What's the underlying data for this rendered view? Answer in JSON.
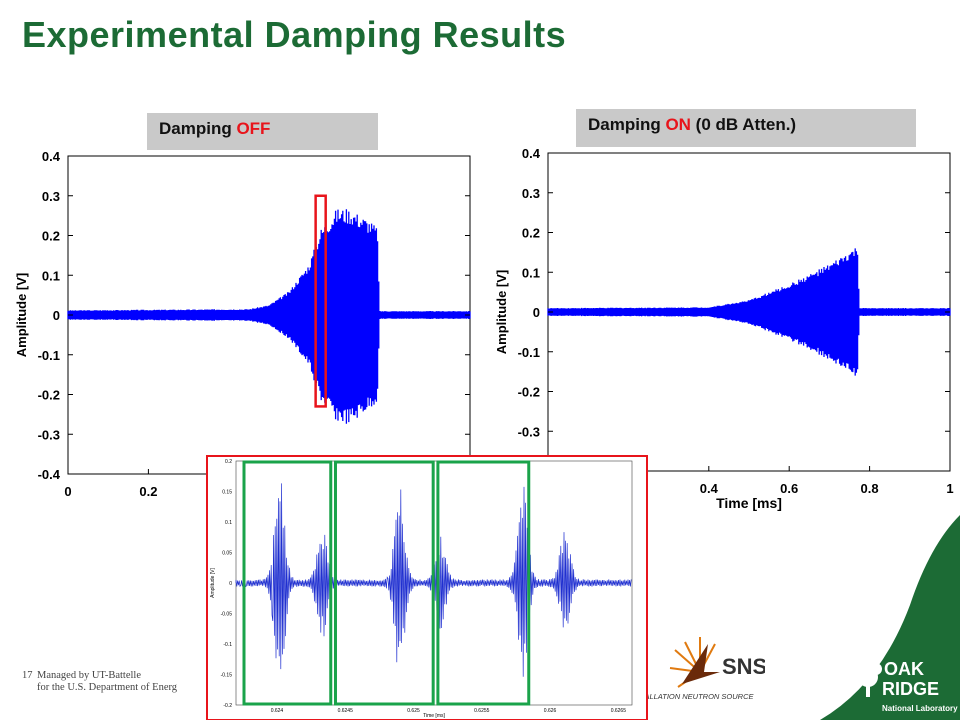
{
  "slide": {
    "title": "Experimental Damping Results",
    "page_number": "17",
    "footer_line1": "Managed by UT-Battelle",
    "footer_line2": "for the U.S. Department of Energ"
  },
  "panels": {
    "left_label_prefix": "Damping ",
    "left_label_state": "OFF",
    "right_label_prefix": "Damping ",
    "right_label_state": "ON",
    "right_label_suffix": " (0 dB Atten.)"
  },
  "logos": {
    "sns_text": "SNS",
    "sns_subtext": "PALLATION NEUTRON SOURCE",
    "ornl_line1": "OAK",
    "ornl_line2": "RIDGE",
    "ornl_line3": "National Laboratory"
  },
  "colors": {
    "title": "#1c6b35",
    "signal": "#0000ff",
    "highlight_red": "#e8141b",
    "zoom_green": "#1aa34a"
  },
  "chart_data": [
    {
      "type": "line",
      "name": "damping-off",
      "ylabel": "Amplitude [V]",
      "xlim": [
        0,
        1
      ],
      "ylim": [
        -0.4,
        0.4
      ],
      "x_ticks": [
        "0",
        "0.2"
      ],
      "y_ticks": [
        "0.4",
        "0.3",
        "0.2",
        "0.1",
        "0",
        "-0.1",
        "-0.2",
        "-0.3",
        "-0.4"
      ],
      "envelope_x": [
        0,
        0.45,
        0.5,
        0.55,
        0.6,
        0.63,
        0.67,
        0.7,
        0.75,
        0.77,
        0.775,
        1
      ],
      "envelope_upper": [
        0.012,
        0.015,
        0.025,
        0.06,
        0.13,
        0.22,
        0.27,
        0.27,
        0.24,
        0.22,
        0.01,
        0.01
      ],
      "envelope_lower": [
        -0.012,
        -0.015,
        -0.025,
        -0.06,
        -0.13,
        -0.22,
        -0.27,
        -0.28,
        -0.24,
        -0.22,
        -0.01,
        -0.01
      ],
      "highlight_window": [
        0.616,
        0.641
      ]
    },
    {
      "type": "line",
      "name": "damping-on",
      "ylabel": "Amplitude [V]",
      "xlabel": "Time [ms]",
      "xlim": [
        0,
        1
      ],
      "ylim": [
        -0.4,
        0.4
      ],
      "x_ticks": [
        "0.4",
        "0.6",
        "0.8",
        "1"
      ],
      "y_ticks": [
        "0.4",
        "0.3",
        "0.2",
        "0.1",
        "0",
        "-0.1",
        "-0.2",
        "-0.3"
      ],
      "envelope_x": [
        0,
        0.4,
        0.5,
        0.6,
        0.7,
        0.77,
        0.775,
        1
      ],
      "envelope_upper": [
        0.01,
        0.012,
        0.03,
        0.07,
        0.12,
        0.165,
        0.01,
        0.01
      ],
      "envelope_lower": [
        -0.01,
        -0.012,
        -0.03,
        -0.07,
        -0.12,
        -0.165,
        -0.01,
        -0.01
      ]
    },
    {
      "type": "line",
      "name": "zoom-inset",
      "ylabel": "Amplitude [V]",
      "xlabel": "Time [ms]",
      "xlim": [
        0.6237,
        0.6266
      ],
      "ylim": [
        -0.2,
        0.2
      ],
      "x_ticks": [
        "0.624",
        "0.6245",
        "0.625",
        "0.6255",
        "0.626",
        "0.6265"
      ],
      "y_ticks": [
        "0.2",
        "0.15",
        "0.1",
        "0.05",
        "0",
        "-0.05",
        "-0.1",
        "-0.15",
        "-0.2"
      ],
      "pulses": [
        {
          "x": 0.62402,
          "amp": 0.18
        },
        {
          "x": 0.62433,
          "amp": 0.09
        },
        {
          "x": 0.6249,
          "amp": 0.155
        },
        {
          "x": 0.6252,
          "amp": 0.07
        },
        {
          "x": 0.6258,
          "amp": 0.16
        },
        {
          "x": 0.62611,
          "amp": 0.085
        }
      ],
      "zoom_windows": [
        [
          0.6237,
          0.62435
        ],
        [
          0.62437,
          0.6251
        ],
        [
          0.62512,
          0.6258
        ]
      ]
    }
  ]
}
